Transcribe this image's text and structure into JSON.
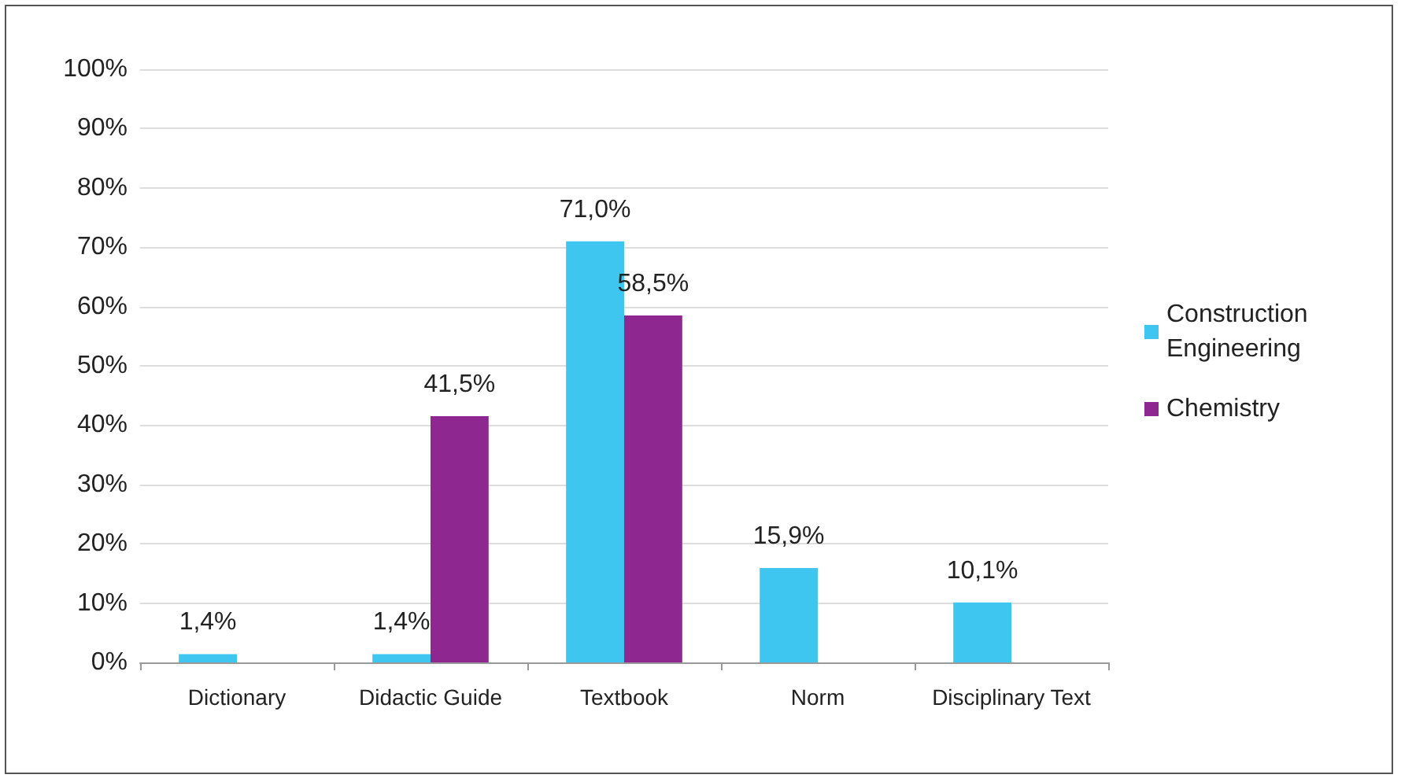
{
  "chart_data": {
    "type": "bar",
    "categories": [
      "Dictionary",
      "Didactic Guide",
      "Textbook",
      "Norm",
      "Disciplinary Text"
    ],
    "series": [
      {
        "name": "Construction Engineering",
        "color": "#3ec6f0",
        "values": [
          1.4,
          1.4,
          71.0,
          15.9,
          10.1
        ],
        "value_labels": [
          "1,4%",
          "1,4%",
          "71,0%",
          "15,9%",
          "10,1%"
        ]
      },
      {
        "name": "Chemistry",
        "color": "#8e278f",
        "values": [
          null,
          41.5,
          58.5,
          null,
          null
        ],
        "value_labels": [
          null,
          "41,5%",
          "58,5%",
          null,
          null
        ]
      }
    ],
    "ylim": [
      0,
      100
    ],
    "yticks": [
      {
        "value": 0,
        "label": "0%"
      },
      {
        "value": 10,
        "label": "10%"
      },
      {
        "value": 20,
        "label": "20%"
      },
      {
        "value": 30,
        "label": "30%"
      },
      {
        "value": 40,
        "label": "40%"
      },
      {
        "value": 50,
        "label": "50%"
      },
      {
        "value": 60,
        "label": "60%"
      },
      {
        "value": 70,
        "label": "70%"
      },
      {
        "value": 80,
        "label": "80%"
      },
      {
        "value": 90,
        "label": "90%"
      },
      {
        "value": 100,
        "label": "100%"
      }
    ],
    "grid": "y",
    "legend": "right"
  }
}
